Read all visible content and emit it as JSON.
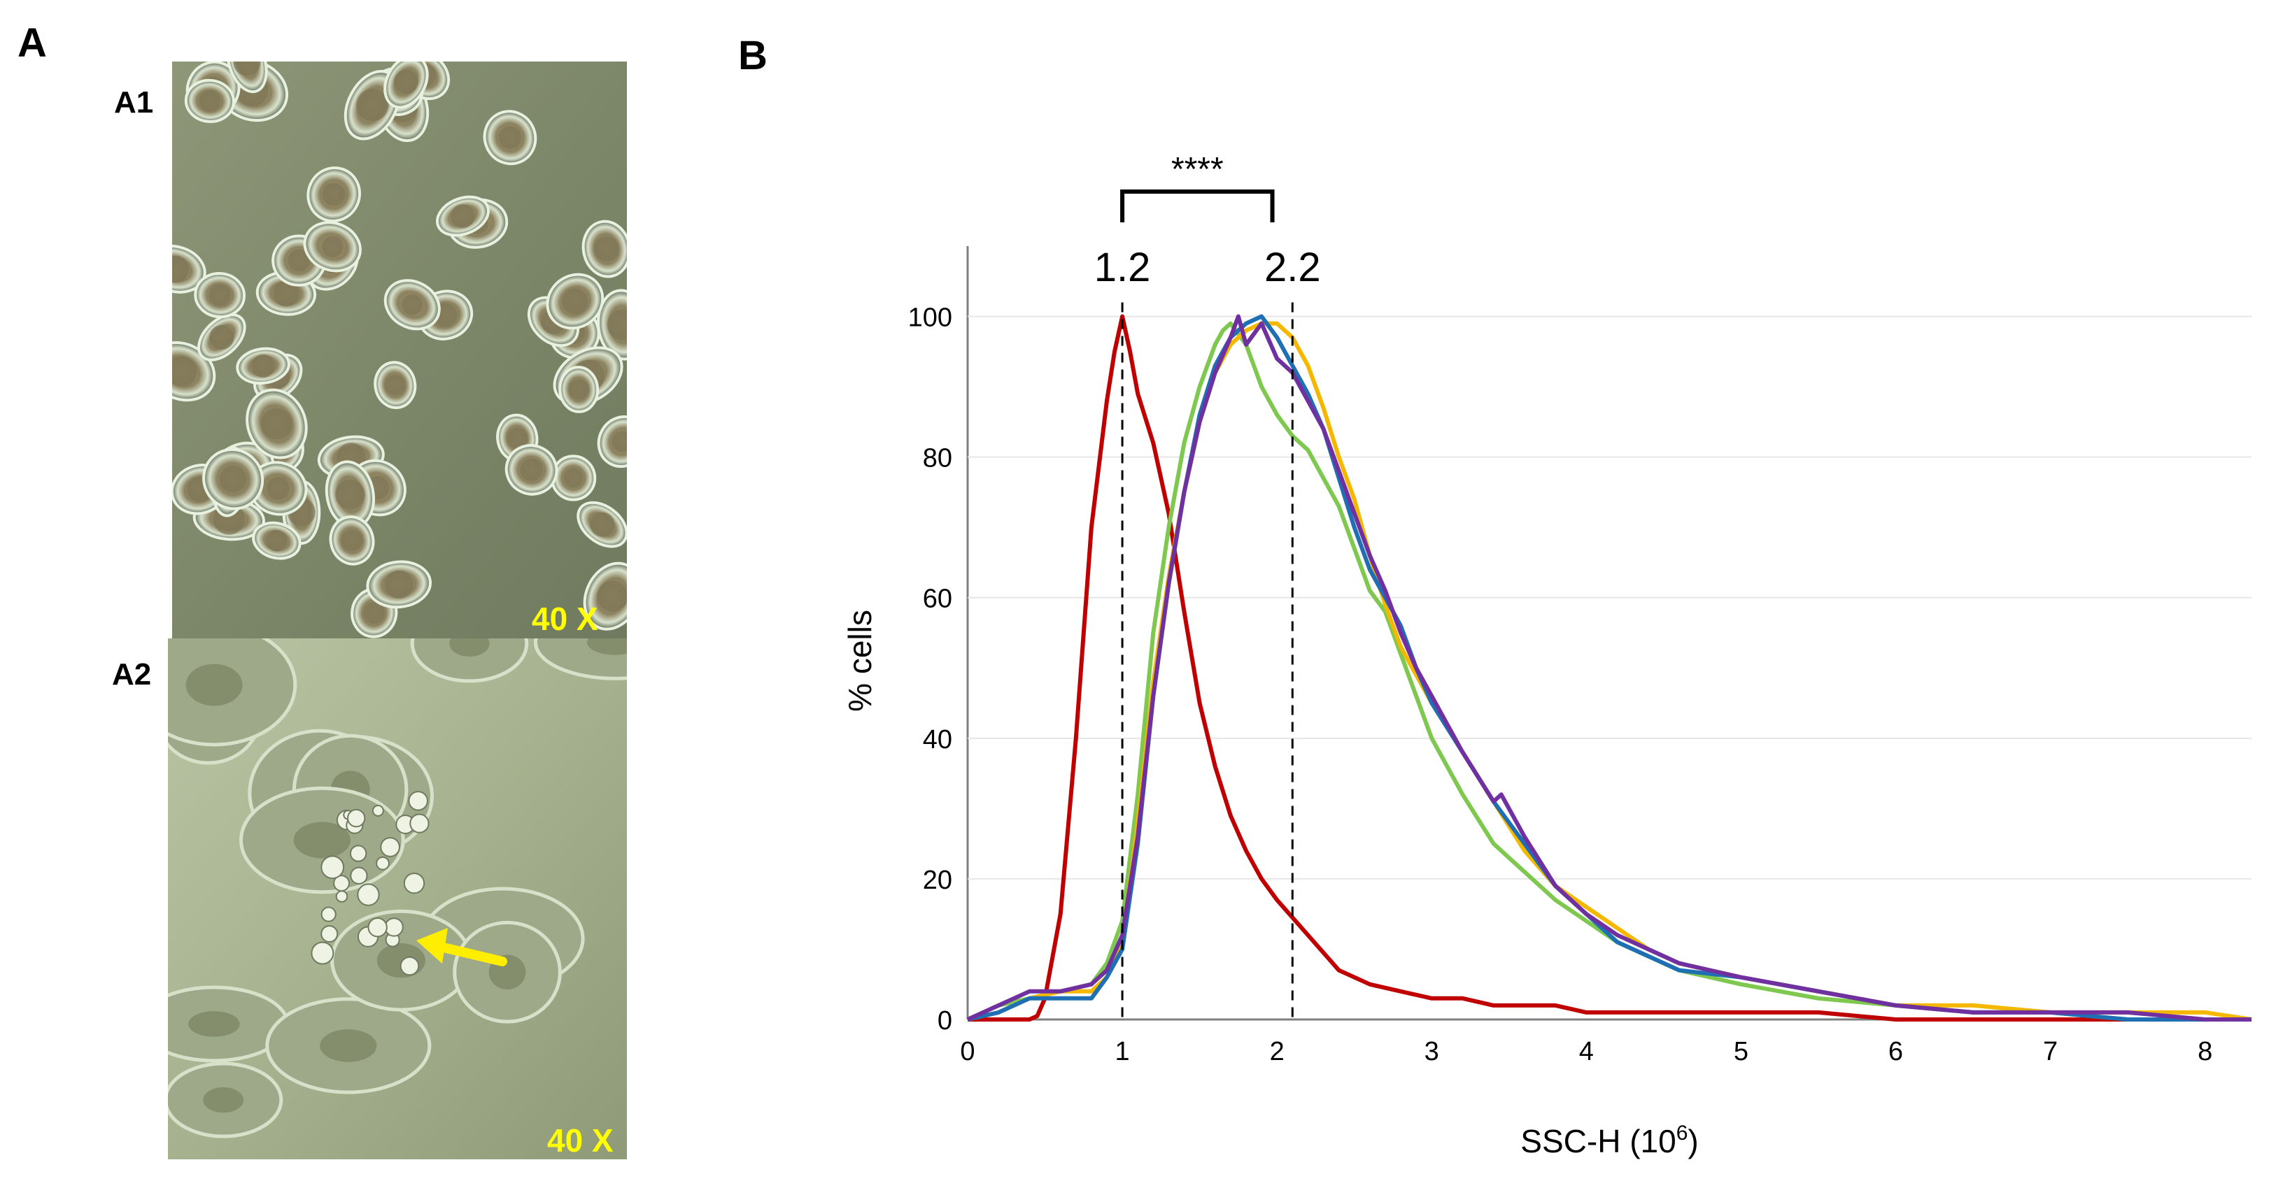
{
  "figure": {
    "panel_a_label": "A",
    "panel_b_label": "B",
    "a1": {
      "label": "A1",
      "magnification": "40 X"
    },
    "a2": {
      "label": "A2",
      "magnification": "40 X"
    }
  },
  "chart_data": {
    "type": "line",
    "xlabel": "SSC-H (10",
    "xlabel_sup": "6",
    "xlabel_close": ")",
    "ylabel": "% cells",
    "xlim": [
      0,
      8.3
    ],
    "ylim": [
      0,
      110
    ],
    "xticks": [
      0,
      1,
      2,
      3,
      4,
      5,
      6,
      7,
      8
    ],
    "yticks": [
      0,
      20,
      40,
      60,
      80,
      100
    ],
    "annotations": {
      "peak_low": {
        "text": "1.2",
        "x": 1.0
      },
      "peak_high": {
        "text": "2.2",
        "x": 2.1
      },
      "significance": "****",
      "bracket_from": 1.0,
      "bracket_to": 1.97
    },
    "colors": {
      "red": "#c00000",
      "green": "#7ec850",
      "yellow": "#f5b800",
      "blue": "#1f6fb4",
      "purple": "#7030a0"
    },
    "series": [
      {
        "name": "red",
        "color": "#c00000",
        "x": [
          0,
          0.2,
          0.4,
          0.45,
          0.5,
          0.6,
          0.7,
          0.8,
          0.9,
          0.95,
          1.0,
          1.05,
          1.1,
          1.2,
          1.3,
          1.4,
          1.5,
          1.6,
          1.7,
          1.8,
          1.9,
          2.0,
          2.2,
          2.4,
          2.6,
          2.8,
          3.0,
          3.2,
          3.4,
          3.6,
          3.8,
          4.0,
          4.5,
          5.0,
          5.5,
          6.0,
          6.5,
          7.0,
          7.5,
          8.0,
          8.3
        ],
        "y": [
          0,
          0,
          0,
          0.5,
          3,
          15,
          40,
          70,
          88,
          95,
          100,
          95,
          89,
          82,
          72,
          58,
          45,
          36,
          29,
          24,
          20,
          17,
          12,
          7,
          5,
          4,
          3,
          3,
          2,
          2,
          2,
          1,
          1,
          1,
          1,
          0,
          0,
          0,
          0,
          0,
          0
        ]
      },
      {
        "name": "green",
        "color": "#7ec850",
        "x": [
          0,
          0.2,
          0.4,
          0.6,
          0.8,
          0.9,
          1.0,
          1.1,
          1.2,
          1.3,
          1.4,
          1.5,
          1.6,
          1.65,
          1.7,
          1.8,
          1.9,
          2.0,
          2.1,
          2.2,
          2.3,
          2.4,
          2.5,
          2.6,
          2.7,
          2.8,
          3.0,
          3.2,
          3.4,
          3.6,
          3.8,
          4.0,
          4.2,
          4.4,
          4.6,
          5.0,
          5.5,
          6.0,
          6.5,
          7.0,
          7.5,
          8.0,
          8.3
        ],
        "y": [
          0,
          2,
          3,
          4,
          5,
          8,
          14,
          32,
          55,
          70,
          82,
          90,
          96,
          98,
          99,
          96,
          90,
          86,
          83,
          81,
          77,
          73,
          67,
          61,
          58,
          52,
          40,
          32,
          25,
          21,
          17,
          14,
          11,
          9,
          7,
          5,
          3,
          2,
          1,
          1,
          0,
          0,
          0
        ]
      },
      {
        "name": "yellow",
        "color": "#f5b800",
        "x": [
          0,
          0.2,
          0.4,
          0.6,
          0.8,
          0.9,
          1.0,
          1.1,
          1.2,
          1.3,
          1.4,
          1.5,
          1.6,
          1.7,
          1.8,
          1.9,
          2.0,
          2.1,
          2.2,
          2.3,
          2.4,
          2.5,
          2.6,
          2.7,
          2.8,
          2.9,
          3.0,
          3.2,
          3.4,
          3.6,
          3.8,
          4.0,
          4.2,
          4.4,
          4.6,
          5.0,
          5.5,
          6.0,
          6.5,
          7.0,
          7.5,
          8.0,
          8.3
        ],
        "y": [
          0,
          1,
          3,
          4,
          4,
          6,
          11,
          28,
          48,
          63,
          75,
          85,
          92,
          96,
          98,
          99,
          99,
          97,
          93,
          87,
          80,
          74,
          66,
          59,
          53,
          49,
          45,
          38,
          31,
          24,
          19,
          16,
          13,
          10,
          8,
          6,
          4,
          2,
          2,
          1,
          1,
          1,
          0
        ]
      },
      {
        "name": "blue",
        "color": "#1f6fb4",
        "x": [
          0,
          0.2,
          0.4,
          0.6,
          0.8,
          0.9,
          1.0,
          1.1,
          1.2,
          1.3,
          1.4,
          1.5,
          1.6,
          1.7,
          1.8,
          1.9,
          2.0,
          2.1,
          2.2,
          2.3,
          2.4,
          2.5,
          2.6,
          2.7,
          2.8,
          2.9,
          3.0,
          3.2,
          3.4,
          3.6,
          3.8,
          4.0,
          4.2,
          4.4,
          4.6,
          5.0,
          5.5,
          6.0,
          6.5,
          7.0,
          7.5,
          8.0,
          8.3
        ],
        "y": [
          0,
          1,
          3,
          3,
          3,
          6,
          10,
          25,
          46,
          62,
          75,
          86,
          93,
          97,
          99,
          100,
          97,
          93,
          89,
          84,
          77,
          70,
          64,
          60,
          56,
          50,
          45,
          38,
          31,
          25,
          19,
          15,
          11,
          9,
          7,
          6,
          4,
          2,
          1,
          1,
          0,
          0,
          0
        ]
      },
      {
        "name": "purple",
        "color": "#7030a0",
        "x": [
          0,
          0.2,
          0.4,
          0.6,
          0.8,
          0.9,
          1.0,
          1.1,
          1.2,
          1.3,
          1.4,
          1.5,
          1.6,
          1.7,
          1.75,
          1.8,
          1.9,
          2.0,
          2.1,
          2.2,
          2.3,
          2.4,
          2.5,
          2.6,
          2.7,
          2.8,
          2.9,
          3.0,
          3.2,
          3.4,
          3.45,
          3.6,
          3.8,
          4.0,
          4.2,
          4.4,
          4.6,
          5.0,
          5.5,
          6.0,
          6.5,
          7.0,
          7.5,
          8.0,
          8.3
        ],
        "y": [
          0,
          2,
          4,
          4,
          5,
          7,
          12,
          26,
          46,
          62,
          75,
          85,
          92,
          97,
          100,
          96,
          99,
          94,
          92,
          88,
          84,
          78,
          72,
          66,
          61,
          55,
          50,
          46,
          38,
          31,
          32,
          26,
          19,
          15,
          12,
          10,
          8,
          6,
          4,
          2,
          1,
          1,
          1,
          0,
          0
        ]
      }
    ]
  }
}
